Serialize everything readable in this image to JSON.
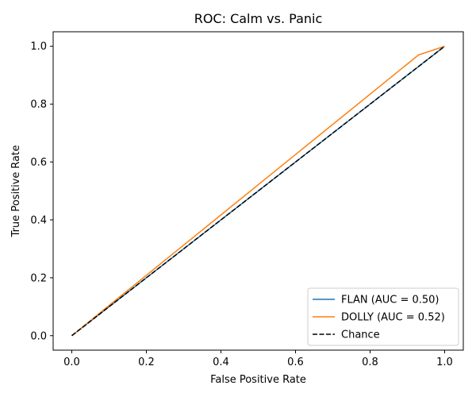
{
  "chart_data": {
    "type": "line",
    "title": "ROC: Calm vs. Panic",
    "xlabel": "False Positive Rate",
    "ylabel": "True Positive Rate",
    "xlim": [
      -0.05,
      1.05
    ],
    "ylim": [
      -0.05,
      1.05
    ],
    "xticks": [
      0.0,
      0.2,
      0.4,
      0.6,
      0.8,
      1.0
    ],
    "yticks": [
      0.0,
      0.2,
      0.4,
      0.6,
      0.8,
      1.0
    ],
    "xtick_labels": [
      "0.0",
      "0.2",
      "0.4",
      "0.6",
      "0.8",
      "1.0"
    ],
    "ytick_labels": [
      "0.0",
      "0.2",
      "0.4",
      "0.6",
      "0.8",
      "1.0"
    ],
    "grid": false,
    "legend_position": "lower right",
    "series": [
      {
        "name": "FLAN (AUC = 0.50)",
        "color": "#1f77b4",
        "style": "solid",
        "x": [
          0.0,
          1.0
        ],
        "y": [
          0.0,
          1.0
        ]
      },
      {
        "name": "DOLLY (AUC = 0.52)",
        "color": "#ff7f0e",
        "style": "solid",
        "x": [
          0.0,
          0.93,
          1.0
        ],
        "y": [
          0.0,
          0.97,
          1.0
        ]
      },
      {
        "name": "Chance",
        "color": "#000000",
        "style": "dashed",
        "x": [
          0.0,
          1.0
        ],
        "y": [
          0.0,
          1.0
        ]
      }
    ]
  }
}
